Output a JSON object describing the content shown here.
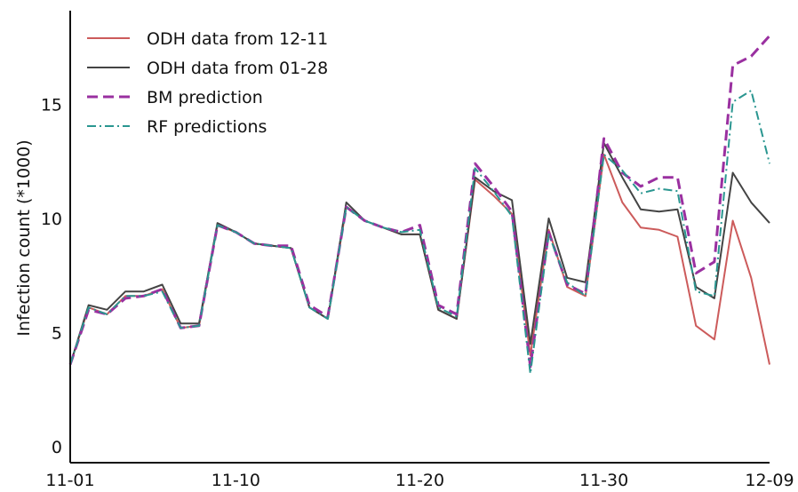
{
  "chart_data": {
    "type": "line",
    "title": "",
    "xlabel": "",
    "ylabel": "Infection count (*1000)",
    "x": [
      "11-01",
      "11-02",
      "11-03",
      "11-04",
      "11-05",
      "11-06",
      "11-07",
      "11-08",
      "11-09",
      "11-10",
      "11-11",
      "11-12",
      "11-13",
      "11-14",
      "11-15",
      "11-16",
      "11-17",
      "11-18",
      "11-19",
      "11-20",
      "11-21",
      "11-22",
      "11-23",
      "11-24",
      "11-25",
      "11-26",
      "11-27",
      "11-28",
      "11-29",
      "11-30",
      "12-01",
      "12-02",
      "12-03",
      "12-04",
      "12-05",
      "12-06",
      "12-07",
      "12-08",
      "12-09"
    ],
    "x_ticks": [
      "11-01",
      "11-10",
      "11-20",
      "11-30",
      "12-09"
    ],
    "y_ticks": [
      0,
      5,
      10,
      15
    ],
    "ylim": [
      -0.7,
      19.1
    ],
    "grid": false,
    "legend_position": "top-left",
    "series": [
      {
        "name": "ODH data from 12-11",
        "color": "#cc5b5b",
        "style": "solid",
        "values": [
          3.6,
          6.1,
          5.8,
          6.6,
          6.6,
          6.9,
          5.2,
          5.3,
          9.7,
          9.4,
          8.9,
          8.8,
          8.7,
          6.1,
          5.6,
          10.5,
          9.9,
          9.6,
          9.3,
          9.3,
          6.0,
          5.6,
          11.7,
          11.0,
          10.2,
          4.0,
          9.5,
          7.0,
          6.6,
          12.8,
          10.7,
          9.6,
          9.5,
          9.2,
          5.3,
          4.7,
          9.9,
          7.4,
          3.6
        ]
      },
      {
        "name": "ODH data from 01-28",
        "color": "#444444",
        "style": "solid",
        "values": [
          3.6,
          6.2,
          6.0,
          6.8,
          6.8,
          7.1,
          5.4,
          5.4,
          9.8,
          9.4,
          8.9,
          8.8,
          8.7,
          6.1,
          5.6,
          10.7,
          9.9,
          9.6,
          9.3,
          9.3,
          6.0,
          5.6,
          11.8,
          11.2,
          10.8,
          4.5,
          10.0,
          7.4,
          7.2,
          13.3,
          11.8,
          10.4,
          10.3,
          10.4,
          7.0,
          6.5,
          12.0,
          10.7,
          9.8
        ]
      },
      {
        "name": "BM prediction",
        "color": "#9a30a0",
        "style": "dashed",
        "values": [
          3.6,
          6.0,
          5.8,
          6.5,
          6.6,
          6.9,
          5.2,
          5.3,
          9.7,
          9.4,
          8.9,
          8.8,
          8.8,
          6.2,
          5.7,
          10.5,
          9.9,
          9.6,
          9.4,
          9.7,
          6.2,
          5.8,
          12.4,
          11.4,
          10.3,
          3.5,
          9.4,
          7.1,
          6.7,
          13.5,
          12.0,
          11.4,
          11.8,
          11.8,
          7.6,
          8.1,
          16.7,
          17.1,
          18.0
        ]
      },
      {
        "name": "RF predictions",
        "color": "#2a9690",
        "style": "dashdot",
        "values": [
          3.6,
          6.1,
          5.8,
          6.6,
          6.6,
          6.8,
          5.2,
          5.3,
          9.7,
          9.4,
          8.9,
          8.8,
          8.7,
          6.1,
          5.6,
          10.5,
          9.9,
          9.6,
          9.4,
          9.5,
          6.1,
          5.7,
          12.2,
          11.2,
          10.1,
          3.2,
          9.3,
          7.2,
          6.6,
          12.8,
          12.1,
          11.1,
          11.3,
          11.2,
          6.8,
          6.6,
          15.1,
          15.6,
          12.4
        ]
      }
    ]
  }
}
